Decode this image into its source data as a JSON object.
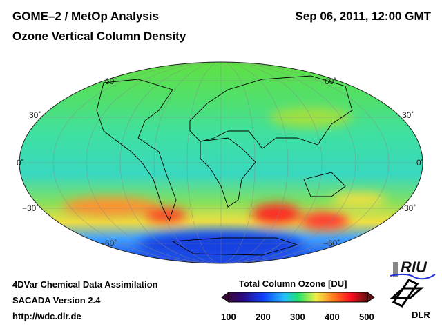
{
  "header": {
    "title": "GOME–2 / MetOp Analysis",
    "subtitle": "Ozone Vertical Column Density",
    "datetime": "Sep 06, 2011, 12:00 GMT"
  },
  "map": {
    "lat_labels_left": [
      "60˚",
      "30˚",
      "0˚",
      "−30˚",
      "−60˚"
    ],
    "lat_labels_right": [
      "60˚",
      "30˚",
      "0˚",
      "−30˚",
      "−60˚"
    ]
  },
  "footer": {
    "line1": "4DVar Chemical Data Assimilation",
    "line2": "SACADA Version 2.4",
    "line3": "http://wdc.dlr.de"
  },
  "colorbar": {
    "title": "Total Column Ozone [DU]",
    "ticks": [
      "100",
      "200",
      "300",
      "400",
      "500"
    ],
    "range": [
      100,
      500
    ],
    "colors": [
      "#3a0a3a",
      "#2a0a80",
      "#1040ff",
      "#20c0ff",
      "#20e070",
      "#f0f040",
      "#ff8020",
      "#ff1020",
      "#601010"
    ]
  },
  "logos": {
    "riu": "RIU",
    "dlr": "DLR"
  }
}
